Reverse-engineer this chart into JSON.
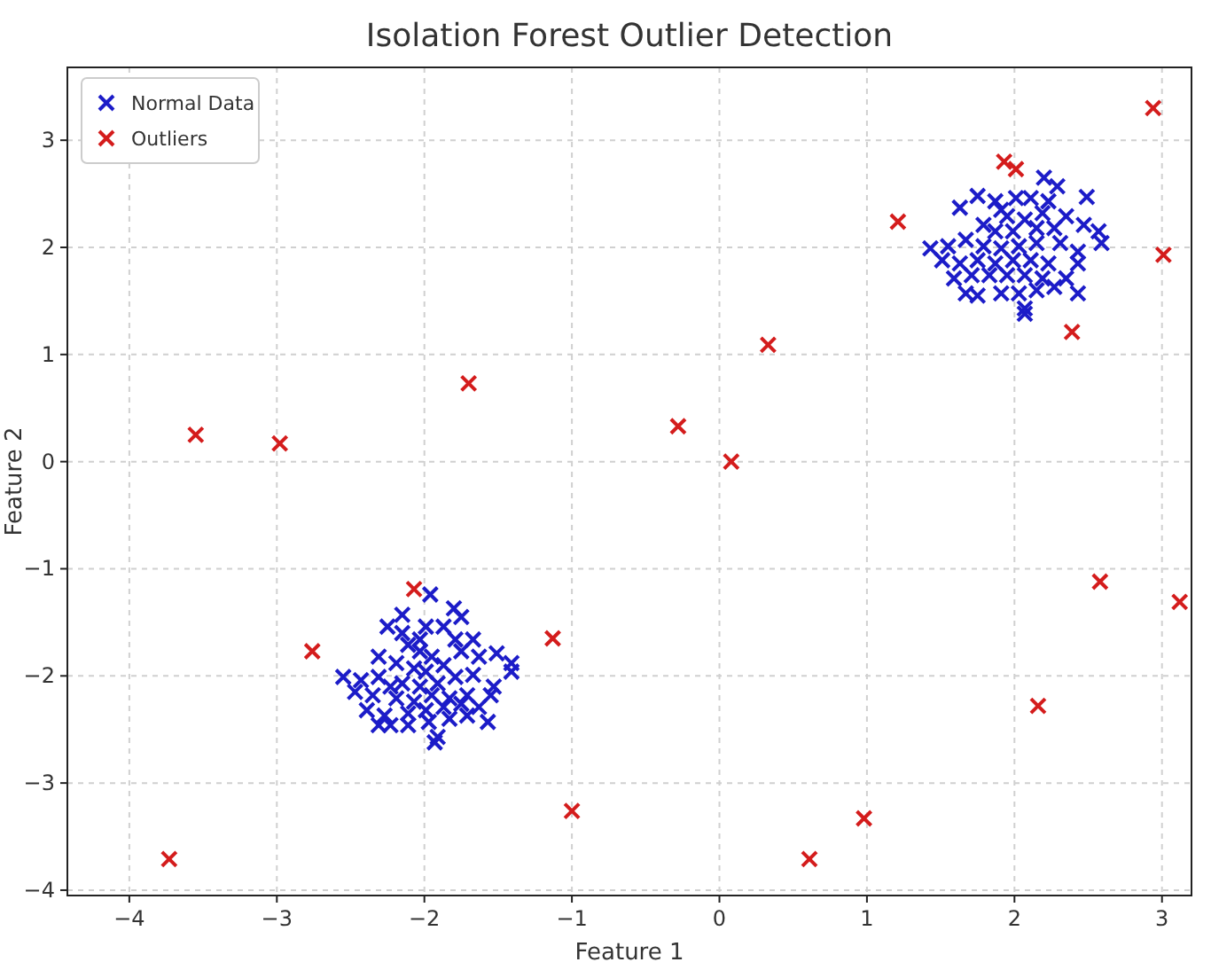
{
  "chart_data": {
    "type": "scatter",
    "title": "Isolation Forest Outlier Detection",
    "xlabel": "Feature 1",
    "ylabel": "Feature 2",
    "xlim": [
      -4.42,
      3.2
    ],
    "ylim": [
      -4.05,
      3.68
    ],
    "xticks": [
      {
        "value": -4,
        "label": "−4"
      },
      {
        "value": -3,
        "label": "−3"
      },
      {
        "value": -2,
        "label": "−2"
      },
      {
        "value": -1,
        "label": "−1"
      },
      0,
      1,
      2,
      3
    ],
    "yticks": [
      {
        "value": -4,
        "label": "−4"
      },
      {
        "value": -3,
        "label": "−3"
      },
      {
        "value": -2,
        "label": "−2"
      },
      {
        "value": -1,
        "label": "−1"
      },
      0,
      1,
      2,
      3
    ],
    "grid": true,
    "legend": "top left",
    "marker": "cross",
    "series": [
      {
        "name": "Normal Data",
        "color": "#1c1cc8",
        "x": [
          -1.96,
          -2.15,
          -2.25,
          -1.8,
          -1.75,
          -1.99,
          -1.87,
          -2.11,
          -2.03,
          -1.95,
          -2.31,
          -2.19,
          -2.07,
          -1.99,
          -1.87,
          -1.75,
          -1.67,
          -1.63,
          -1.51,
          -1.41,
          -1.41,
          -2.55,
          -2.43,
          -2.31,
          -2.23,
          -2.15,
          -2.03,
          -1.91,
          -1.79,
          -1.67,
          -1.53,
          -2.47,
          -2.35,
          -2.19,
          -2.07,
          -1.95,
          -1.83,
          -1.71,
          -1.55,
          -2.39,
          -2.27,
          -2.11,
          -1.99,
          -1.87,
          -1.75,
          -1.63,
          -2.31,
          -2.23,
          -2.11,
          -1.97,
          -1.83,
          -1.71,
          -1.57,
          -1.91,
          -1.93,
          -2.03,
          -1.79,
          -2.15,
          2.2,
          2.29,
          2.49,
          1.75,
          1.87,
          1.63,
          2.01,
          2.11,
          1.95,
          2.07,
          2.19,
          2.35,
          1.79,
          1.87,
          1.99,
          2.15,
          2.27,
          2.47,
          2.57,
          2.59,
          1.43,
          1.55,
          1.67,
          1.79,
          1.91,
          2.03,
          2.15,
          2.31,
          2.43,
          1.51,
          1.63,
          1.75,
          1.87,
          1.99,
          2.11,
          2.23,
          2.43,
          1.59,
          1.71,
          1.83,
          1.95,
          2.07,
          2.19,
          2.35,
          1.67,
          1.75,
          1.91,
          2.03,
          2.15,
          2.27,
          2.43,
          2.07,
          2.07,
          1.91,
          2.23
        ],
        "values": [
          -1.24,
          -1.43,
          -1.54,
          -1.37,
          -1.45,
          -1.54,
          -1.54,
          -1.71,
          -1.77,
          -1.82,
          -1.82,
          -1.88,
          -1.93,
          -1.96,
          -1.9,
          -1.77,
          -1.66,
          -1.82,
          -1.79,
          -1.88,
          -1.96,
          -2.01,
          -2.04,
          -2.01,
          -2.1,
          -2.07,
          -2.1,
          -2.07,
          -2.01,
          -1.99,
          -2.1,
          -2.15,
          -2.18,
          -2.21,
          -2.24,
          -2.18,
          -2.21,
          -2.18,
          -2.18,
          -2.32,
          -2.37,
          -2.35,
          -2.32,
          -2.29,
          -2.26,
          -2.29,
          -2.46,
          -2.46,
          -2.46,
          -2.43,
          -2.4,
          -2.37,
          -2.43,
          -2.57,
          -2.62,
          -1.66,
          -1.66,
          -1.6,
          2.65,
          2.57,
          2.47,
          2.48,
          2.43,
          2.37,
          2.46,
          2.46,
          2.29,
          2.26,
          2.32,
          2.29,
          2.21,
          2.15,
          2.15,
          2.18,
          2.18,
          2.21,
          2.15,
          2.04,
          1.99,
          2.01,
          2.07,
          2.01,
          1.99,
          2.01,
          2.04,
          2.04,
          1.96,
          1.88,
          1.85,
          1.88,
          1.85,
          1.88,
          1.88,
          1.85,
          1.85,
          1.71,
          1.74,
          1.74,
          1.74,
          1.74,
          1.71,
          1.71,
          1.57,
          1.55,
          1.57,
          1.57,
          1.6,
          1.63,
          1.57,
          1.43,
          1.38,
          2.35,
          2.43
        ]
      },
      {
        "name": "Outliers",
        "color": "#d41c1c",
        "x": [
          -3.73,
          -3.55,
          -2.98,
          -1.7,
          -2.76,
          -2.07,
          -1.13,
          -1.0,
          -0.28,
          0.08,
          0.33,
          0.61,
          0.98,
          1.21,
          1.93,
          2.01,
          2.39,
          2.16,
          2.58,
          2.94,
          3.01,
          3.12
        ],
        "values": [
          -3.71,
          0.25,
          0.17,
          0.73,
          -1.77,
          -1.19,
          -1.65,
          -3.26,
          0.33,
          0.0,
          1.09,
          -3.71,
          -3.33,
          2.24,
          2.8,
          2.73,
          1.21,
          -2.28,
          -1.12,
          3.3,
          1.93,
          -1.31
        ]
      }
    ]
  }
}
